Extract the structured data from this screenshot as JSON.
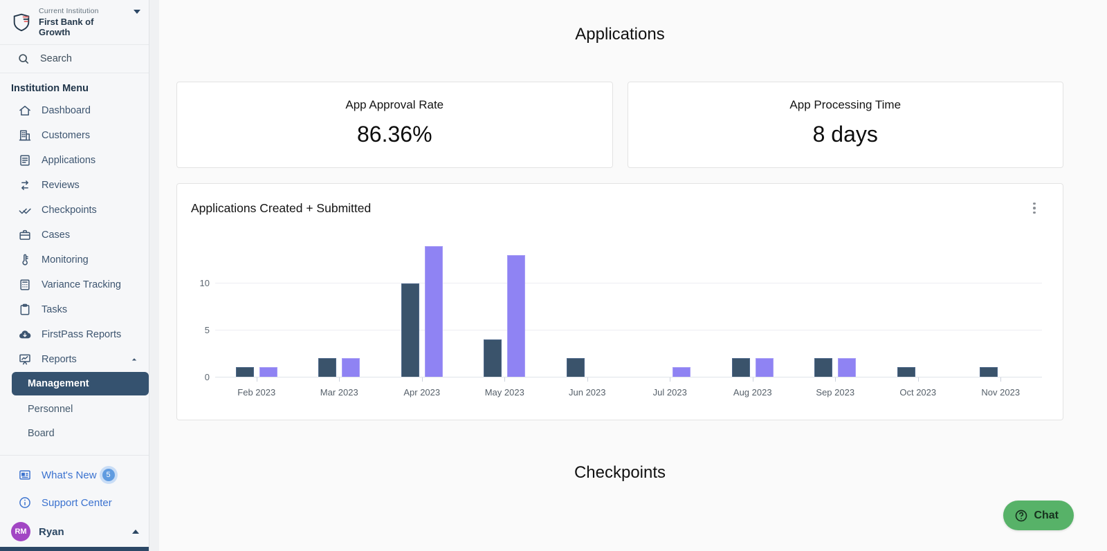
{
  "sidebar": {
    "institution": {
      "label": "Current Institution",
      "name": "First Bank of Growth"
    },
    "search": {
      "label": "Search"
    },
    "menu_title": "Institution Menu",
    "items": [
      {
        "label": "Dashboard",
        "icon": "home"
      },
      {
        "label": "Customers",
        "icon": "building"
      },
      {
        "label": "Applications",
        "icon": "document"
      },
      {
        "label": "Reviews",
        "icon": "arrows-cycle"
      },
      {
        "label": "Checkpoints",
        "icon": "double-check"
      },
      {
        "label": "Cases",
        "icon": "briefcase"
      },
      {
        "label": "Monitoring",
        "icon": "thermometer"
      },
      {
        "label": "Variance Tracking",
        "icon": "calculator"
      },
      {
        "label": "Tasks",
        "icon": "clipboard"
      },
      {
        "label": "FirstPass Reports",
        "icon": "cloud-download"
      },
      {
        "label": "Reports",
        "icon": "chart-board",
        "expanded": true
      }
    ],
    "report_subitems": [
      {
        "label": "Management",
        "selected": true
      },
      {
        "label": "Personnel",
        "selected": false
      },
      {
        "label": "Board",
        "selected": false
      }
    ],
    "footer": {
      "whats_new": "What's New",
      "whats_new_badge": "5",
      "support": "Support Center",
      "user": {
        "initials": "RM",
        "name": "Ryan"
      }
    }
  },
  "main": {
    "section_title": "Applications",
    "stat_cards": [
      {
        "title": "App Approval Rate",
        "value": "86.36%"
      },
      {
        "title": "App Processing Time",
        "value": "8 days"
      }
    ],
    "bottom_section_title": "Checkpoints"
  },
  "chart_data": {
    "type": "bar",
    "title": "Applications Created + Submitted",
    "categories": [
      "Feb 2023",
      "Mar 2023",
      "Apr 2023",
      "May 2023",
      "Jun 2023",
      "Jul 2023",
      "Aug 2023",
      "Sep 2023",
      "Oct 2023",
      "Nov 2023"
    ],
    "series": [
      {
        "name": "Created",
        "color": "#3a536b",
        "border": "#4e688a",
        "values": [
          1,
          2,
          10,
          4,
          2,
          0,
          2,
          2,
          1,
          1
        ]
      },
      {
        "name": "Submitted",
        "color": "#8f83f3",
        "border": "#a79df6",
        "values": [
          1,
          2,
          14,
          13,
          0,
          1,
          2,
          2,
          0,
          0
        ]
      }
    ],
    "yticks": [
      0,
      5,
      10
    ],
    "ylim": [
      0,
      14
    ],
    "grid": "horizontal",
    "legend": "none"
  },
  "chat": {
    "label": "Chat"
  },
  "colors": {
    "selected_nav_bg": "#35526f",
    "footer_link_blue": "#3b72cf",
    "avatar_purple": "#a246c4",
    "chat_green": "#57b268"
  }
}
